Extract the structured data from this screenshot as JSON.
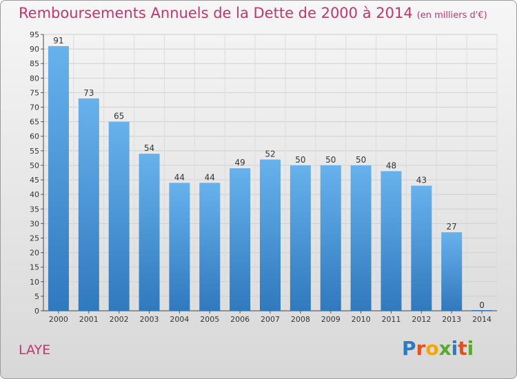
{
  "header": {
    "title": "Remboursements Annuels de la Dette de 2000 à 2014",
    "subtitle": "(en milliers d'€)"
  },
  "footer": {
    "place": "LAYE",
    "logo": "Proxiti"
  },
  "colors": {
    "title": "#c8336d",
    "bar_top": "#67b2ec",
    "bar_bottom": "#2f79bd"
  },
  "chart_data": {
    "type": "bar",
    "title": "Remboursements Annuels de la Dette de 2000 à 2014",
    "subtitle": "(en milliers d'€)",
    "categories": [
      "2000",
      "2001",
      "2002",
      "2003",
      "2004",
      "2005",
      "2006",
      "2007",
      "2008",
      "2009",
      "2010",
      "2011",
      "2012",
      "2013",
      "2014"
    ],
    "values": [
      91,
      73,
      65,
      54,
      44,
      44,
      49,
      52,
      50,
      50,
      50,
      48,
      43,
      27,
      0
    ],
    "ylim": [
      0,
      95
    ],
    "yticks": [
      0,
      5,
      10,
      15,
      20,
      25,
      30,
      35,
      40,
      45,
      50,
      55,
      60,
      65,
      70,
      75,
      80,
      85,
      90,
      95
    ],
    "grid": true,
    "legend": "none"
  }
}
